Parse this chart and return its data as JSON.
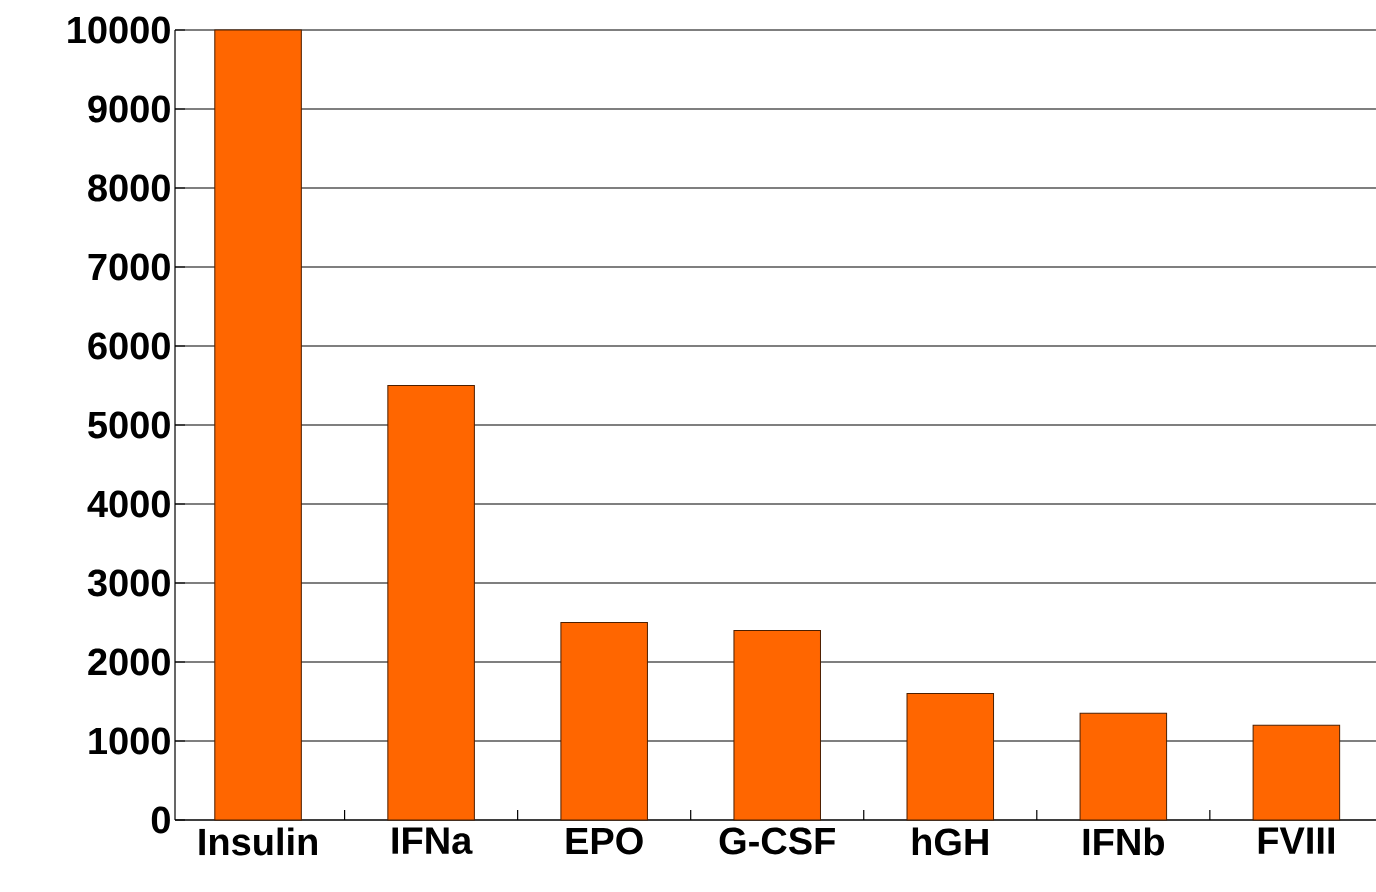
{
  "chart_data": {
    "type": "bar",
    "categories": [
      "Insulin",
      "IFNa",
      "EPO",
      "G-CSF",
      "hGH",
      "IFNb",
      "FVIII"
    ],
    "values": [
      10000,
      5500,
      2500,
      2400,
      1600,
      1350,
      1200
    ],
    "color": "#ff6600",
    "ylim": [
      0,
      10000
    ],
    "yticks": [
      0,
      1000,
      2000,
      3000,
      4000,
      5000,
      6000,
      7000,
      8000,
      9000,
      10000
    ],
    "grid": "y"
  }
}
